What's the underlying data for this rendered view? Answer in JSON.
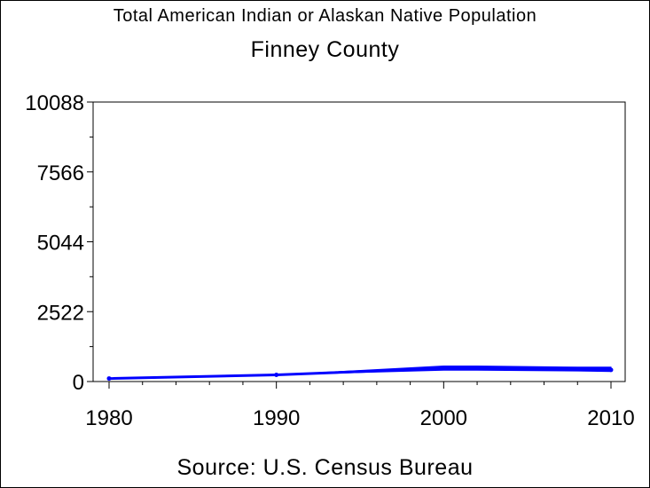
{
  "chart_data": {
    "type": "line",
    "title": "Total American Indian or Alaskan Native Population",
    "subtitle": "Finney County",
    "source": "Source: U.S. Census Bureau",
    "xlabel": "",
    "ylabel": "",
    "xlim": [
      1980,
      2010
    ],
    "ylim": [
      0,
      10088
    ],
    "xticks": [
      1980,
      1990,
      2000,
      2010
    ],
    "yticks": [
      0,
      2522,
      5044,
      7566,
      10088
    ],
    "grid": false,
    "line_color": "#0000ff",
    "series": [
      {
        "x": [
          1980,
          1990,
          2000,
          2010
        ],
        "values": [
          110,
          240,
          480,
          420
        ]
      }
    ],
    "band": {
      "x": [
        1980,
        1990,
        2000,
        2002,
        2008,
        2010
      ],
      "lower": [
        110,
        240,
        410,
        410,
        380,
        360
      ],
      "upper": [
        110,
        240,
        560,
        560,
        520,
        520
      ]
    }
  }
}
